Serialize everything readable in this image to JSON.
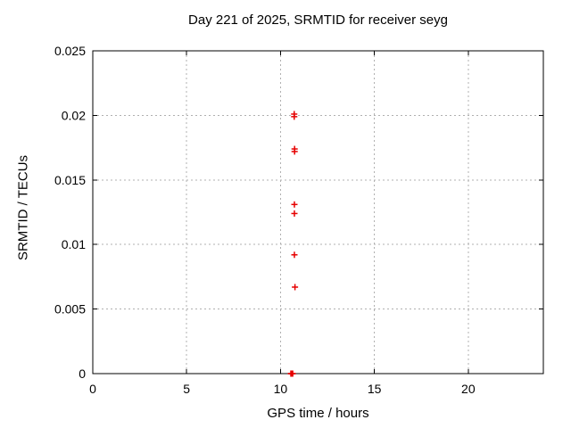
{
  "chart_data": {
    "type": "scatter",
    "title": "Day 221 of 2025, SRMTID for receiver seyg",
    "xlabel": "GPS time / hours",
    "ylabel": "SRMTID / TECUs",
    "xlim": [
      0,
      24
    ],
    "ylim": [
      0,
      0.025
    ],
    "xticks": {
      "values": [
        0,
        5,
        10,
        15,
        20
      ],
      "labels": [
        "0",
        "5",
        "10",
        "15",
        "20"
      ]
    },
    "yticks": {
      "values": [
        0,
        0.005,
        0.01,
        0.015,
        0.02,
        0.025
      ],
      "labels": [
        "0",
        "0.005",
        "0.01",
        "0.015",
        "0.02",
        "0.025"
      ]
    },
    "grid": true,
    "legend": "none",
    "grid_color": "#b0b0b0",
    "axis_color": "#000000",
    "marker": {
      "shape": "plus",
      "color": "#e60000",
      "size": 7
    },
    "series": [
      {
        "name": "SRMTID",
        "points": [
          [
            10.73,
            0.0201
          ],
          [
            10.73,
            0.0199
          ],
          [
            10.75,
            0.0174
          ],
          [
            10.75,
            0.0172
          ],
          [
            10.74,
            0.0131
          ],
          [
            10.74,
            0.0124
          ],
          [
            10.74,
            0.0092
          ],
          [
            10.77,
            0.0067
          ],
          [
            10.55,
            0.0
          ],
          [
            10.58,
            0.0
          ],
          [
            10.6,
            0.0
          ],
          [
            10.62,
            0.0
          ],
          [
            10.65,
            0.0
          ]
        ]
      }
    ]
  }
}
